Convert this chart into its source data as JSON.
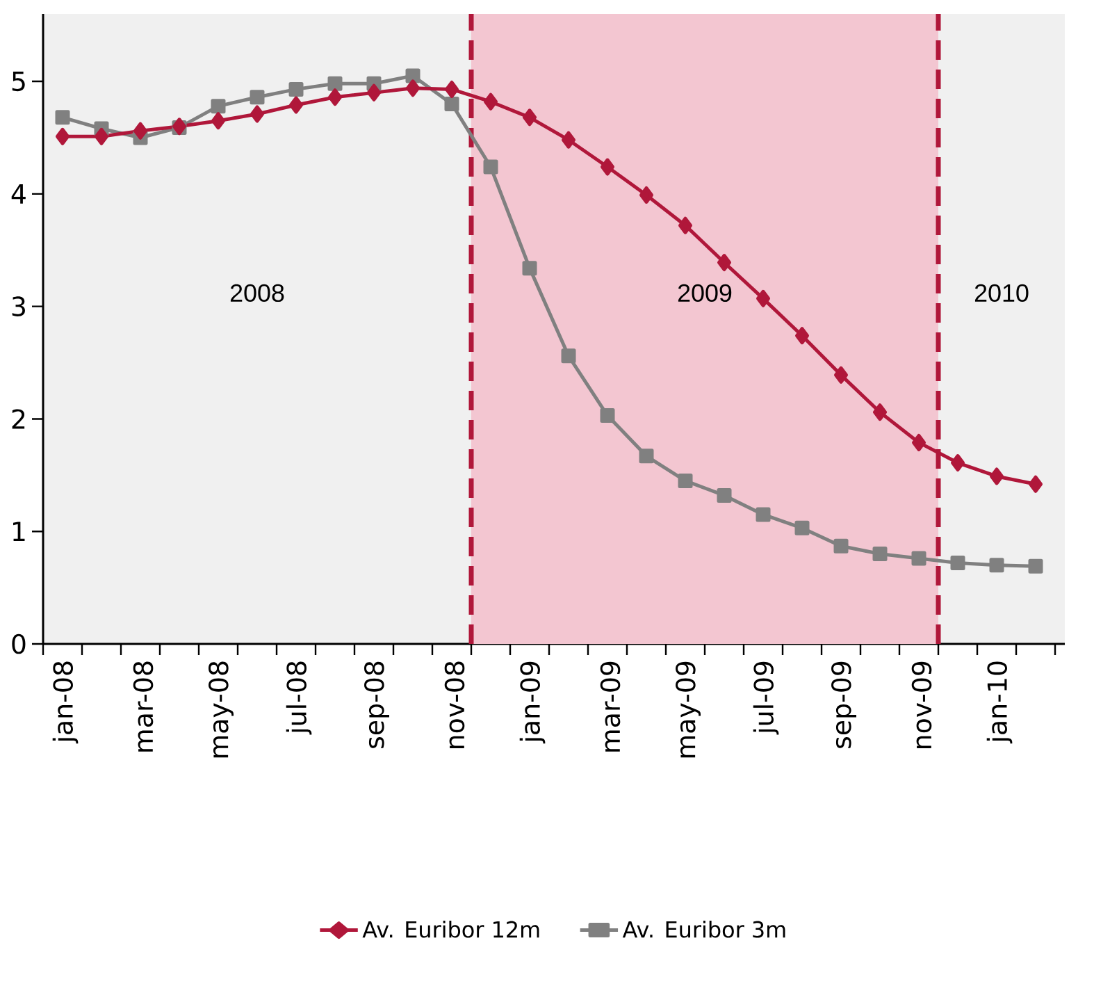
{
  "chart_data": {
    "type": "line",
    "categories": [
      "jan-08",
      null,
      "mar-08",
      null,
      "may-08",
      null,
      "jul-08",
      null,
      "sep-08",
      null,
      "nov-08",
      null,
      "jan-09",
      null,
      "mar-09",
      null,
      "may-09",
      null,
      "jul-09",
      null,
      "sep-09",
      null,
      "nov-09",
      null,
      "jan-10",
      null
    ],
    "series": [
      {
        "name": "Av. Euribor 12m",
        "color": "#b0173a",
        "marker": "diamond",
        "values": [
          4.51,
          4.51,
          4.56,
          4.6,
          4.65,
          4.71,
          4.79,
          4.86,
          4.9,
          4.94,
          4.93,
          4.82,
          4.68,
          4.48,
          4.24,
          3.99,
          3.72,
          3.39,
          3.07,
          2.74,
          2.39,
          2.06,
          1.79,
          1.61,
          1.49,
          1.42
        ]
      },
      {
        "name": "Av. Euribor 3m",
        "color": "#808080",
        "marker": "square",
        "values": [
          4.68,
          4.58,
          4.5,
          4.59,
          4.78,
          4.86,
          4.93,
          4.98,
          4.98,
          5.05,
          4.8,
          4.24,
          3.34,
          2.56,
          2.03,
          1.67,
          1.45,
          1.32,
          1.15,
          1.03,
          0.87,
          0.8,
          0.76,
          0.72,
          0.7,
          0.69
        ]
      }
    ],
    "ylim": [
      0,
      5.6
    ],
    "yticks": [
      0,
      1,
      2,
      3,
      4,
      5
    ],
    "grid": false,
    "legend": "bottom",
    "line_style": "solid",
    "annotations": [
      "2008",
      "2009",
      "2010"
    ]
  }
}
